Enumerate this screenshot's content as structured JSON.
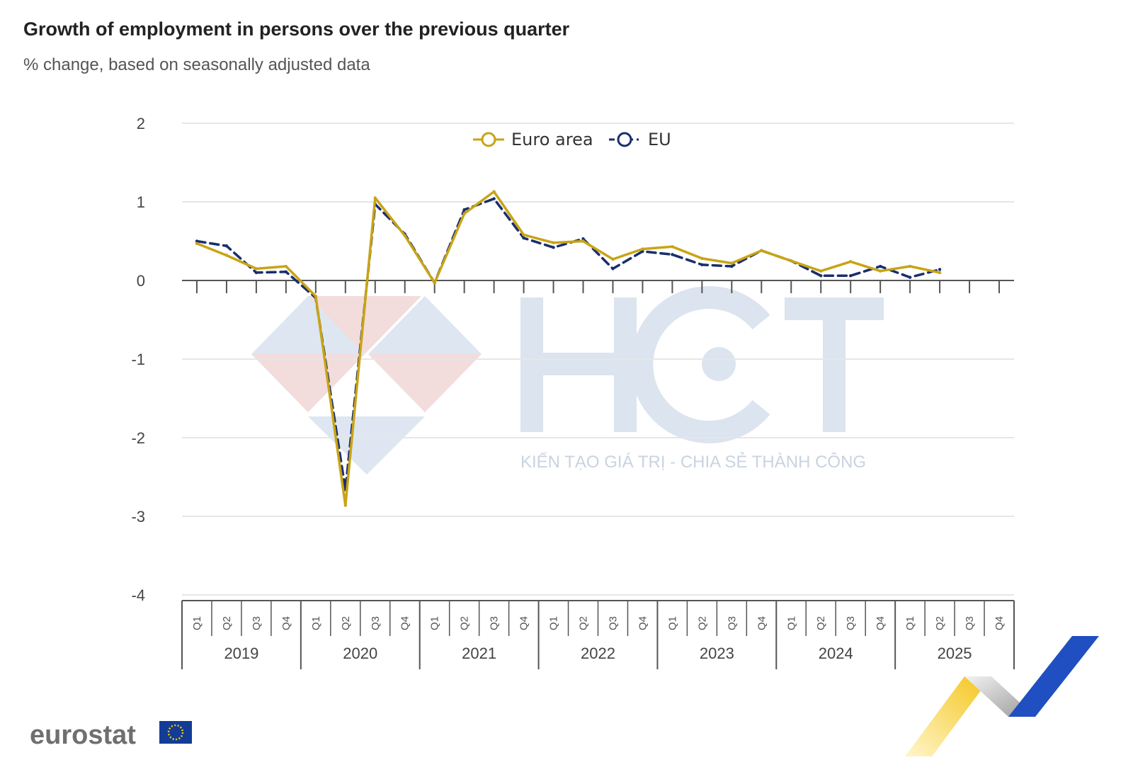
{
  "chart_data": {
    "type": "line",
    "title": "Growth of employment in persons over the previous quarter",
    "subtitle": "% change, based on seasonally adjusted data",
    "ylim": [
      -4,
      2
    ],
    "yticks": [
      "2",
      "1",
      "0",
      "-1",
      "-2",
      "-3",
      "-4"
    ],
    "quarters": [
      "Q1",
      "Q2",
      "Q3",
      "Q4"
    ],
    "years": [
      "2019",
      "2020",
      "2021",
      "2022",
      "2023",
      "2024",
      "2025"
    ],
    "grid": true,
    "legend_position": "top-center",
    "series": [
      {
        "name": "Euro area",
        "color": "#c8a415",
        "style": "solid",
        "values": [
          0.47,
          0.32,
          0.15,
          0.18,
          -0.2,
          -2.86,
          1.05,
          0.57,
          -0.03,
          0.85,
          1.13,
          0.58,
          0.48,
          0.5,
          0.27,
          0.4,
          0.43,
          0.28,
          0.22,
          0.38,
          0.25,
          0.12,
          0.24,
          0.12,
          0.18,
          0.1
        ]
      },
      {
        "name": "EU",
        "color": "#1a2e6e",
        "style": "dashed",
        "values": [
          0.5,
          0.44,
          0.1,
          0.11,
          -0.22,
          -2.66,
          0.97,
          0.59,
          -0.03,
          0.9,
          1.04,
          0.54,
          0.42,
          0.53,
          0.15,
          0.37,
          0.33,
          0.2,
          0.18,
          0.38,
          0.25,
          0.06,
          0.06,
          0.18,
          0.04,
          0.14
        ]
      }
    ]
  },
  "watermark": {
    "text": "KIẾN TẠO GIÁ TRỊ - CHIA SẺ THÀNH CÔNG",
    "logo_letters": "HCT"
  },
  "logo": {
    "name": "eurostat",
    "text": "eurostat"
  },
  "colors": {
    "grid": "#e6e6e6",
    "axis": "#555555",
    "watermark_blue": "#dbe4ef",
    "watermark_red": "#f1d6d6",
    "eu_blue": "#123c96",
    "eu_star": "#f5cc00"
  }
}
